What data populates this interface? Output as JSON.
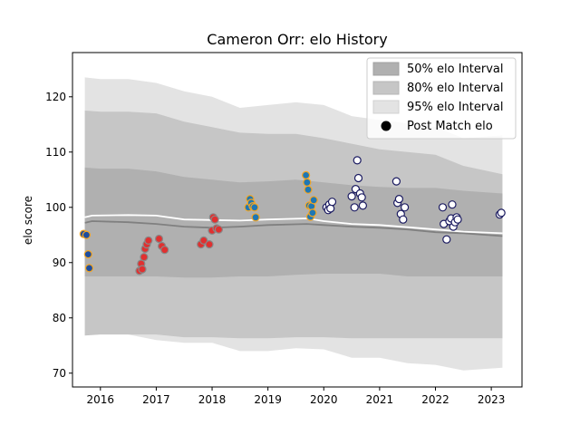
{
  "chart_data": {
    "type": "scatter",
    "title": "Cameron Orr: elo History",
    "xlabel": "",
    "ylabel": "elo score",
    "xlim": [
      2015.5,
      2023.55
    ],
    "ylim": [
      67.5,
      128
    ],
    "x_ticks": [
      2016,
      2017,
      2018,
      2019,
      2020,
      2021,
      2022,
      2023
    ],
    "x_tick_labels": [
      "2016",
      "2017",
      "2018",
      "2019",
      "2020",
      "2021",
      "2022",
      "2023"
    ],
    "y_ticks": [
      70,
      80,
      90,
      100,
      110,
      120
    ],
    "y_tick_labels": [
      "70",
      "80",
      "90",
      "100",
      "110",
      "120"
    ],
    "grid": false,
    "legend_position": "top-right",
    "legend": [
      {
        "label": "50% elo Interval",
        "kind": "band",
        "color": "#b0b0b0"
      },
      {
        "label": "80% elo Interval",
        "kind": "band",
        "color": "#c6c6c6"
      },
      {
        "label": "95% elo Interval",
        "kind": "band",
        "color": "#e3e3e3"
      },
      {
        "label": "Post Match elo",
        "kind": "marker",
        "color": "#000000"
      }
    ],
    "colors": {
      "band_50": "#b0b0b0",
      "band_80": "#c6c6c6",
      "band_95": "#e3e3e3",
      "line_grey": "#808080",
      "line_white": "#ffffff"
    },
    "bands": {
      "x": [
        2015.72,
        2016.0,
        2016.5,
        2017.0,
        2017.5,
        2018.0,
        2018.5,
        2019.0,
        2019.5,
        2020.0,
        2020.5,
        2021.0,
        2021.5,
        2022.0,
        2022.5,
        2023.2
      ],
      "p95_upper": [
        123.5,
        123.2,
        123.2,
        122.5,
        121.0,
        120.0,
        118.0,
        118.5,
        119.0,
        118.5,
        116.5,
        115.8,
        115.2,
        114.5,
        112.5,
        113.0
      ],
      "p80_upper": [
        117.5,
        117.3,
        117.3,
        117.0,
        115.5,
        114.5,
        113.5,
        113.3,
        113.3,
        112.5,
        111.5,
        110.5,
        110.0,
        109.5,
        107.5,
        106.0
      ],
      "p50_upper": [
        107.2,
        107.0,
        107.0,
        106.5,
        105.5,
        105.0,
        104.5,
        104.7,
        105.0,
        104.5,
        104.0,
        103.7,
        103.5,
        103.5,
        103.0,
        102.5
      ],
      "p50_lower": [
        87.5,
        87.5,
        87.5,
        87.5,
        87.3,
        87.3,
        87.5,
        87.5,
        87.8,
        88.0,
        88.0,
        88.0,
        87.5,
        87.5,
        87.5,
        87.5
      ],
      "p80_lower": [
        76.8,
        77.0,
        77.0,
        77.0,
        76.5,
        76.5,
        76.3,
        76.3,
        76.5,
        76.5,
        76.3,
        76.3,
        76.3,
        76.3,
        76.3,
        76.3
      ],
      "p95_lower": [
        76.8,
        77.5,
        77.0,
        76.0,
        75.5,
        75.5,
        74.0,
        74.0,
        74.5,
        74.3,
        72.8,
        72.8,
        71.8,
        71.5,
        70.5,
        71.0
      ]
    },
    "series": [
      {
        "kind": "line",
        "color": "#808080",
        "x": [
          2015.72,
          2015.85,
          2016.5,
          2017.0,
          2017.5,
          2018.0,
          2018.5,
          2019.0,
          2019.7,
          2020.0,
          2020.5,
          2021.0,
          2021.5,
          2022.0,
          2022.5,
          2023.2
        ],
        "values": [
          97.2,
          97.5,
          97.3,
          97.0,
          96.5,
          96.3,
          96.5,
          96.8,
          97.0,
          96.8,
          96.5,
          96.3,
          96.0,
          95.5,
          95.3,
          94.8
        ]
      },
      {
        "kind": "line",
        "color": "#ffffff",
        "x": [
          2015.72,
          2015.85,
          2016.5,
          2017.0,
          2017.5,
          2018.0,
          2018.5,
          2019.0,
          2019.7,
          2020.0,
          2020.5,
          2021.0,
          2021.5,
          2022.0,
          2022.5,
          2023.2
        ],
        "values": [
          98.2,
          98.5,
          98.6,
          98.5,
          97.8,
          97.7,
          97.6,
          97.8,
          98.0,
          97.5,
          97.0,
          96.8,
          96.4,
          96.0,
          95.6,
          95.3
        ]
      },
      {
        "kind": "points",
        "name": "Post Match elo",
        "fill": "#1f4e9e",
        "edge": "#f5a623",
        "x": [
          2015.7,
          2015.75,
          2015.78,
          2015.8
        ],
        "values": [
          95.2,
          95.0,
          91.5,
          89.0
        ]
      },
      {
        "kind": "points",
        "fill": "#e03030",
        "edge": "#888888",
        "x": [
          2016.7,
          2016.73,
          2016.75,
          2016.78,
          2016.8,
          2016.83,
          2016.86,
          2017.05,
          2017.1,
          2017.15,
          2017.8,
          2017.85,
          2017.95,
          2018.0,
          2018.02,
          2018.05,
          2018.08,
          2018.12
        ],
        "values": [
          88.5,
          89.8,
          88.8,
          91.0,
          92.5,
          93.3,
          94.0,
          94.3,
          93.0,
          92.3,
          93.3,
          94.0,
          93.3,
          95.8,
          98.2,
          97.8,
          96.2,
          96.0
        ]
      },
      {
        "kind": "points",
        "fill": "#1f77b4",
        "edge": "#f5a623",
        "x": [
          2018.65,
          2018.68,
          2018.7,
          2018.73,
          2018.76,
          2018.78,
          2019.68,
          2019.7,
          2019.72,
          2019.74,
          2019.76,
          2019.78,
          2019.8,
          2019.82
        ],
        "values": [
          100.0,
          101.5,
          100.8,
          100.2,
          100.0,
          98.2,
          105.8,
          104.5,
          103.2,
          100.3,
          98.3,
          100.2,
          99.0,
          101.3
        ]
      },
      {
        "kind": "points",
        "fill": "#ffffff",
        "edge": "#1a1a60",
        "x": [
          2020.05,
          2020.08,
          2020.1,
          2020.12,
          2020.15,
          2020.5,
          2020.55,
          2020.57,
          2020.6,
          2020.62,
          2020.65,
          2020.68,
          2020.7,
          2021.3,
          2021.32,
          2021.35,
          2021.38,
          2021.42,
          2021.45,
          2022.13,
          2022.15,
          2022.2,
          2022.25,
          2022.28,
          2022.3,
          2022.32,
          2022.35,
          2022.38,
          2022.4,
          2023.15,
          2023.18
        ],
        "values": [
          100.0,
          99.5,
          100.5,
          99.8,
          101.0,
          102.0,
          100.0,
          103.3,
          108.5,
          105.3,
          102.5,
          101.8,
          100.3,
          104.7,
          100.8,
          101.5,
          98.8,
          97.8,
          100.0,
          100.0,
          97.0,
          94.2,
          97.5,
          98.0,
          100.5,
          96.5,
          97.3,
          98.2,
          97.8,
          98.7,
          99.0
        ]
      }
    ]
  }
}
